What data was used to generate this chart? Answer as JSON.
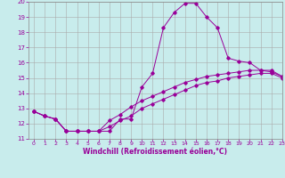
{
  "xlabel": "Windchill (Refroidissement éolien,°C)",
  "background_color": "#c8ecec",
  "line_color": "#990099",
  "ylim": [
    11,
    20
  ],
  "xlim": [
    -0.5,
    23
  ],
  "yticks": [
    11,
    12,
    13,
    14,
    15,
    16,
    17,
    18,
    19,
    20
  ],
  "xticks": [
    0,
    1,
    2,
    3,
    4,
    5,
    6,
    7,
    8,
    9,
    10,
    11,
    12,
    13,
    14,
    15,
    16,
    17,
    18,
    19,
    20,
    21,
    22,
    23
  ],
  "curve1_x": [
    0,
    1,
    2,
    3,
    4,
    5,
    6,
    7,
    8,
    9,
    10,
    11,
    12,
    13,
    14,
    15,
    16,
    17,
    18,
    19,
    20,
    21,
    22,
    23
  ],
  "curve1_y": [
    12.8,
    12.5,
    12.3,
    11.5,
    11.5,
    11.5,
    11.5,
    11.5,
    12.3,
    12.3,
    14.4,
    15.3,
    18.3,
    19.3,
    19.9,
    19.9,
    19.0,
    18.3,
    16.3,
    16.1,
    16.0,
    15.5,
    15.4,
    15.1
  ],
  "curve2_x": [
    0,
    1,
    2,
    3,
    4,
    5,
    6,
    7,
    8,
    9,
    10,
    11,
    12,
    13,
    14,
    15,
    16,
    17,
    18,
    19,
    20,
    21,
    22,
    23
  ],
  "curve2_y": [
    12.8,
    12.5,
    12.3,
    11.5,
    11.5,
    11.5,
    11.5,
    11.8,
    12.2,
    12.5,
    13.0,
    13.3,
    13.6,
    13.9,
    14.2,
    14.5,
    14.7,
    14.8,
    15.0,
    15.1,
    15.2,
    15.3,
    15.3,
    15.0
  ],
  "curve3_x": [
    0,
    1,
    2,
    3,
    4,
    5,
    6,
    7,
    8,
    9,
    10,
    11,
    12,
    13,
    14,
    15,
    16,
    17,
    18,
    19,
    20,
    21,
    22,
    23
  ],
  "curve3_y": [
    12.8,
    12.5,
    12.3,
    11.5,
    11.5,
    11.5,
    11.5,
    12.2,
    12.6,
    13.1,
    13.5,
    13.8,
    14.1,
    14.4,
    14.7,
    14.9,
    15.1,
    15.2,
    15.3,
    15.4,
    15.5,
    15.5,
    15.5,
    15.1
  ]
}
